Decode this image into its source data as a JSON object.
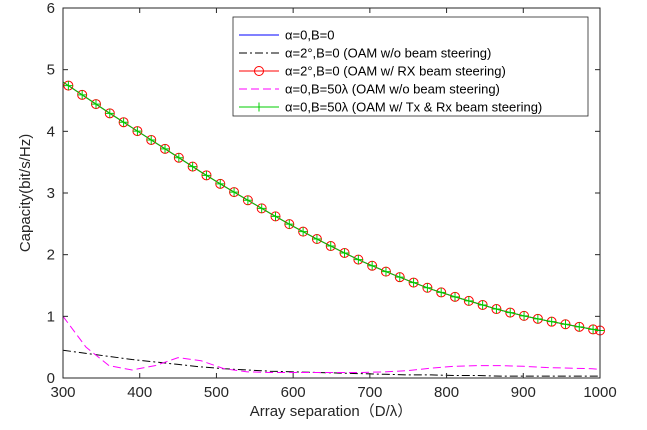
{
  "chart_data": {
    "type": "line",
    "xlabel": "Array separation（D/λ）",
    "ylabel": "Capacity(bit/s/Hz)",
    "xlim": [
      300,
      1000
    ],
    "ylim": [
      0,
      6
    ],
    "xticks": [
      300,
      400,
      500,
      600,
      700,
      800,
      900,
      1000
    ],
    "yticks": [
      0,
      1,
      2,
      3,
      4,
      5,
      6
    ],
    "grid": false,
    "legend_position": "top-right",
    "x": [
      300,
      330,
      360,
      390,
      420,
      450,
      480,
      510,
      540,
      570,
      600,
      630,
      660,
      690,
      720,
      750,
      780,
      810,
      840,
      870,
      900,
      930,
      960,
      990,
      1000
    ],
    "series": [
      {
        "name": "α=0,B=0",
        "color": "#0000ff",
        "line": "solid",
        "marker": "none",
        "values": [
          4.8,
          4.55,
          4.3,
          4.06,
          3.82,
          3.58,
          3.34,
          3.11,
          2.89,
          2.67,
          2.46,
          2.26,
          2.07,
          1.89,
          1.73,
          1.58,
          1.44,
          1.32,
          1.21,
          1.1,
          1.01,
          0.93,
          0.86,
          0.79,
          0.77
        ]
      },
      {
        "name": "α=2°,B=0 (OAM w/o beam steering)",
        "color": "#000000",
        "line": "dashdot",
        "marker": "none",
        "values": [
          0.45,
          0.4,
          0.35,
          0.3,
          0.26,
          0.22,
          0.18,
          0.15,
          0.13,
          0.11,
          0.1,
          0.09,
          0.08,
          0.07,
          0.06,
          0.05,
          0.05,
          0.04,
          0.04,
          0.03,
          0.03,
          0.03,
          0.03,
          0.03,
          0.03
        ]
      },
      {
        "name": "α=2°,B=0 (OAM w/ RX beam steering)",
        "color": "#ff0000",
        "line": "solid",
        "marker": "circle",
        "values": [
          4.8,
          4.55,
          4.3,
          4.06,
          3.82,
          3.58,
          3.34,
          3.11,
          2.89,
          2.67,
          2.46,
          2.26,
          2.07,
          1.89,
          1.73,
          1.58,
          1.44,
          1.32,
          1.21,
          1.1,
          1.01,
          0.93,
          0.86,
          0.79,
          0.77
        ]
      },
      {
        "name": "α=0,B=50λ (OAM w/o beam steering)",
        "color": "#ff00ff",
        "line": "dashed",
        "marker": "none",
        "values": [
          1.0,
          0.5,
          0.2,
          0.13,
          0.2,
          0.33,
          0.28,
          0.15,
          0.1,
          0.09,
          0.09,
          0.09,
          0.09,
          0.09,
          0.1,
          0.12,
          0.16,
          0.19,
          0.2,
          0.2,
          0.19,
          0.17,
          0.16,
          0.15,
          0.14
        ]
      },
      {
        "name": "α=0,B=50λ (OAM w/ Tx & Rx beam steering)",
        "color": "#00cc00",
        "line": "solid",
        "marker": "plus",
        "values": [
          4.8,
          4.55,
          4.3,
          4.06,
          3.82,
          3.58,
          3.34,
          3.11,
          2.89,
          2.67,
          2.46,
          2.26,
          2.07,
          1.89,
          1.73,
          1.58,
          1.44,
          1.32,
          1.21,
          1.1,
          1.01,
          0.93,
          0.86,
          0.79,
          0.77
        ]
      }
    ]
  }
}
